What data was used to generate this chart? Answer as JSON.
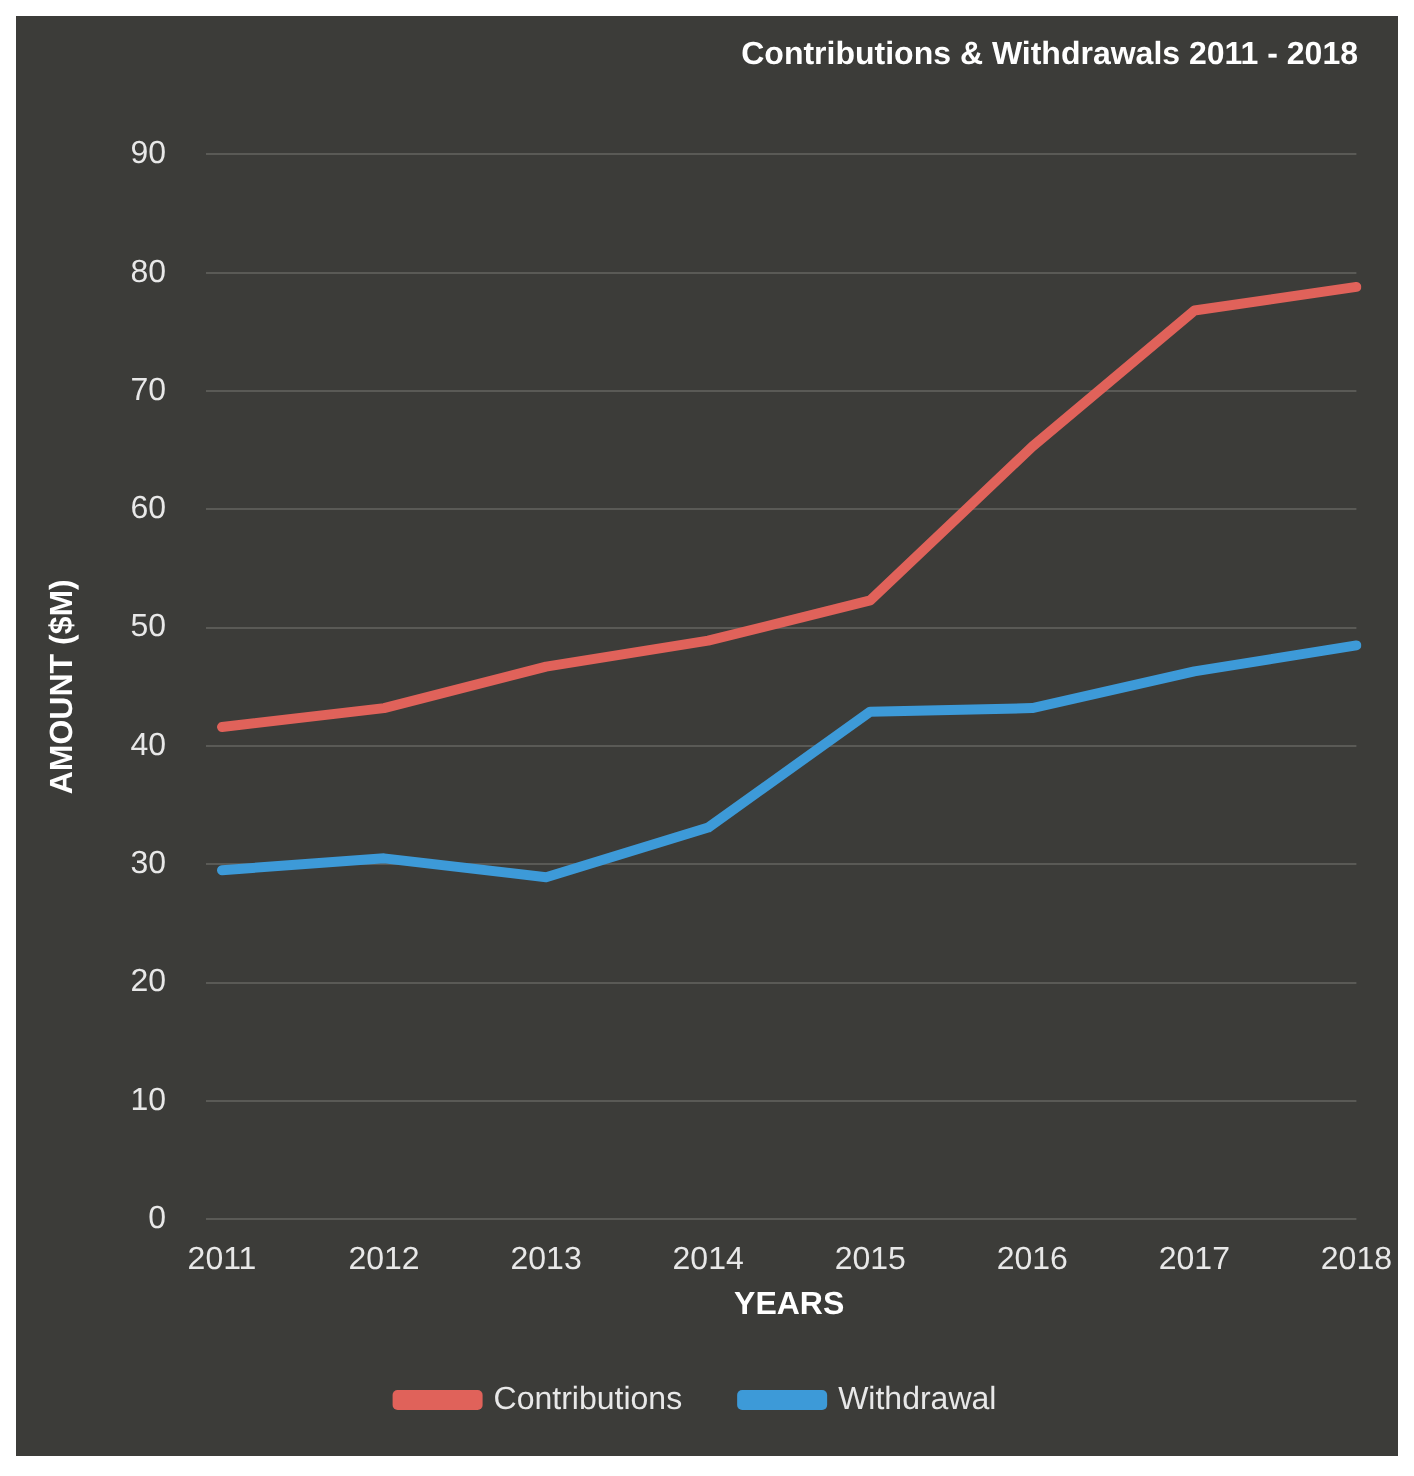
{
  "chart_data": {
    "type": "line",
    "title": "Contributions & Withdrawals 2011 - 2018",
    "xlabel": "YEARS",
    "ylabel": "AMOUNT ($M)",
    "categories": [
      "2011",
      "2012",
      "2013",
      "2014",
      "2015",
      "2016",
      "2017",
      "2018"
    ],
    "series": [
      {
        "name": "Contributions",
        "color": "#e0625a",
        "values": [
          41.6,
          43.2,
          46.7,
          48.9,
          52.3,
          65.3,
          76.8,
          78.8
        ]
      },
      {
        "name": "Withdrawal",
        "color": "#3d9ad8",
        "values": [
          29.5,
          30.5,
          28.9,
          33.1,
          42.9,
          43.2,
          46.3,
          48.5
        ]
      }
    ],
    "ylim": [
      0,
      90
    ],
    "yticks": [
      0,
      10,
      20,
      30,
      40,
      50,
      60,
      70,
      80,
      90
    ],
    "grid": "y",
    "legend": "bottom",
    "marker": "none",
    "line_style": "solid"
  }
}
